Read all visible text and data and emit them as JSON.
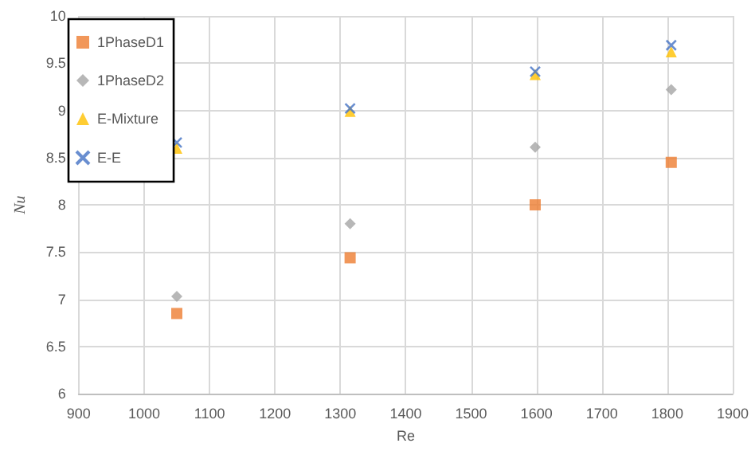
{
  "chart_data": {
    "type": "scatter",
    "xlabel": "Re",
    "ylabel": "Nu",
    "xlim": [
      900,
      1900
    ],
    "xticks": [
      900,
      1000,
      1100,
      1200,
      1300,
      1400,
      1500,
      1600,
      1700,
      1800,
      1900
    ],
    "ylim": [
      6,
      10
    ],
    "yticks": [
      6,
      6.5,
      7,
      7.5,
      8,
      8.5,
      9,
      9.5,
      10
    ],
    "grid": true,
    "legend": "top left",
    "series": [
      {
        "name": "1PhaseD1",
        "color": "#ed7d31",
        "marker": "square",
        "x": [
          1050,
          1315,
          1598,
          1806
        ],
        "values": [
          6.85,
          7.44,
          8.0,
          8.45
        ]
      },
      {
        "name": "1PhaseD2",
        "color": "#a5a5a5",
        "marker": "diamond",
        "x": [
          1050,
          1315,
          1598,
          1806
        ],
        "values": [
          7.03,
          7.8,
          8.61,
          9.22
        ]
      },
      {
        "name": "E-Mixture",
        "color": "#ffc000",
        "marker": "triangle",
        "x": [
          1050,
          1315,
          1598,
          1806
        ],
        "values": [
          8.6,
          8.99,
          9.38,
          9.62
        ]
      },
      {
        "name": "E-E",
        "color": "#4472c4",
        "marker": "cross",
        "x": [
          1050,
          1315,
          1598,
          1806
        ],
        "values": [
          8.66,
          9.02,
          9.41,
          9.69
        ]
      }
    ]
  }
}
